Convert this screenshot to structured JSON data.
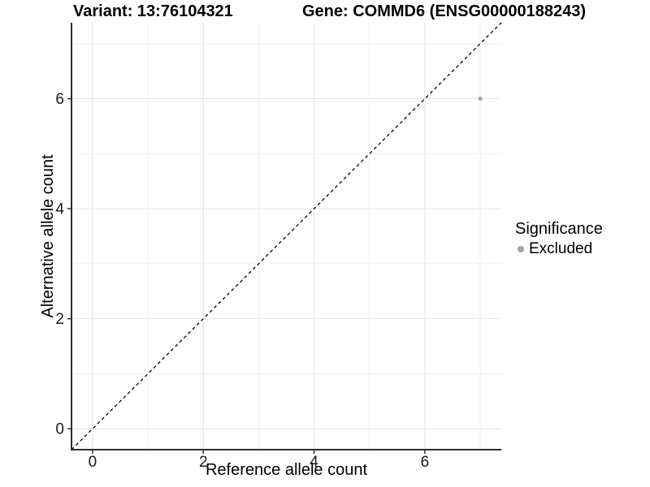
{
  "titles": {
    "variant": "Variant: 13:76104321",
    "gene": "Gene: COMMD6 (ENSG00000188243)"
  },
  "chart_data": {
    "type": "scatter",
    "title": "Variant: 13:76104321   Gene: COMMD6 (ENSG00000188243)",
    "xlabel": "Reference allele count",
    "ylabel": "Alternative allele count",
    "xlim": [
      -0.38,
      7.38
    ],
    "ylim": [
      -0.38,
      7.38
    ],
    "x_ticks": [
      0,
      2,
      4,
      6
    ],
    "y_ticks": [
      0,
      2,
      4,
      6
    ],
    "x_minor_gridlines": [
      1,
      3,
      5,
      7
    ],
    "y_minor_gridlines": [
      1,
      3,
      5,
      7
    ],
    "grid": true,
    "series": [
      {
        "name": "Excluded",
        "points": [
          {
            "x": 7,
            "y": 6
          }
        ],
        "color": "#a3a3a3",
        "point_radius": 2.5
      }
    ],
    "reference_line": {
      "kind": "identity",
      "style": "dashed",
      "color": "#000000",
      "from": {
        "x": -0.38,
        "y": -0.38
      },
      "to": {
        "x": 7.38,
        "y": 7.38
      }
    },
    "legend": {
      "position": "right",
      "title": "Significance",
      "items": [
        {
          "label": "Excluded",
          "color": "#a3a3a3"
        }
      ]
    }
  },
  "colors": {
    "background": "#ffffff",
    "major_grid": "#e4e4e4",
    "minor_grid": "#f1f1f1",
    "axis_line": "#2e2e2e",
    "tick_mark": "#2e2e2e",
    "tick_label": "#1a1a1a",
    "point_gray": "#a3a3a3",
    "dashed_line": "#000000"
  }
}
